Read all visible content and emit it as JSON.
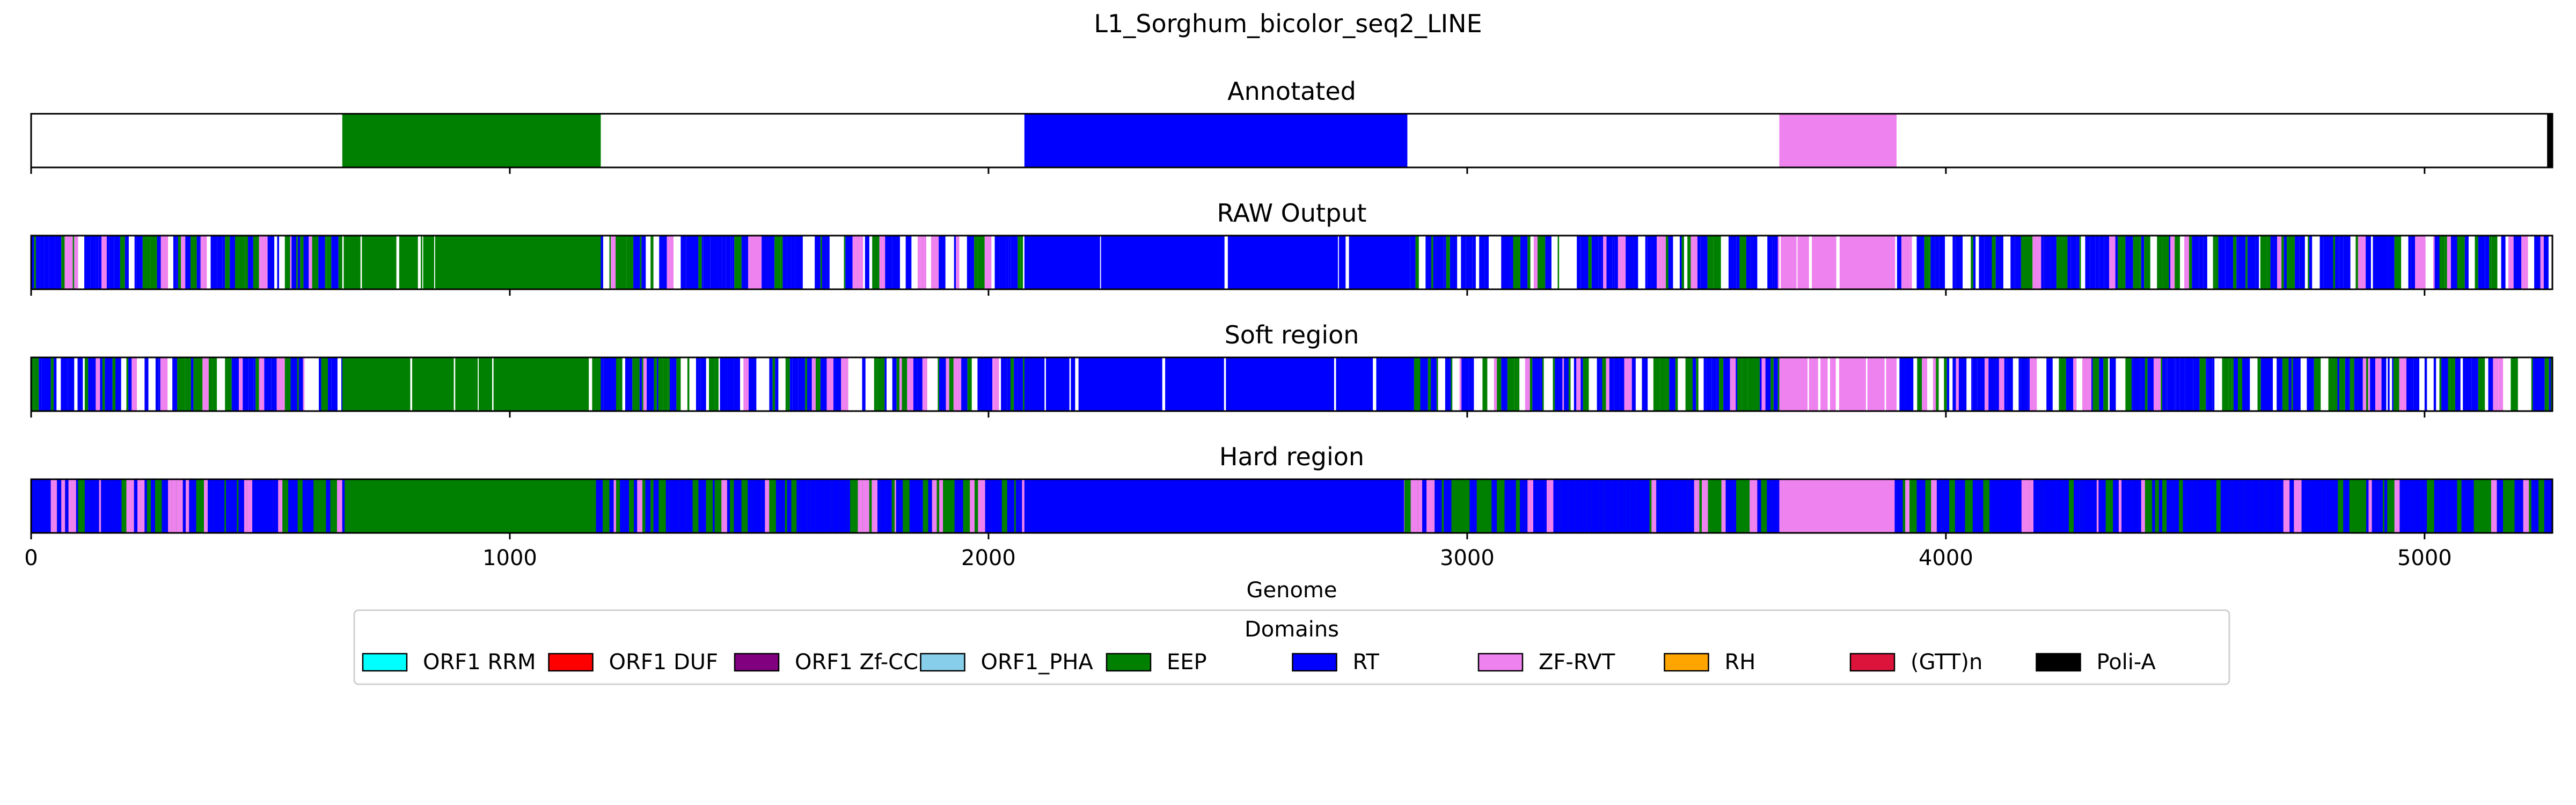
{
  "chart_data": {
    "type": "genome_track",
    "title": "L1_Sorghum_bicolor_seq2_LINE",
    "xlabel": "Genome",
    "xlim": [
      0,
      5267
    ],
    "xticks": [
      0,
      1000,
      2000,
      3000,
      4000,
      5000
    ],
    "colors": {
      "ORF1 RRM": "#00ffff",
      "ORF1 DUF": "#ff0000",
      "ORF1 Zf-CCHC": "#800080",
      "ORF1_PHA": "#87ceeb",
      "EEP": "#008000",
      "RT": "#0000ff",
      "ZF-RVT": "#ee82ee",
      "RH": "#ffa500",
      "(GTT)n": "#dc143c",
      "Poli-A": "#000000"
    },
    "tracks": [
      {
        "title": "Annotated",
        "segments": [
          {
            "domain": "EEP",
            "start": 650,
            "end": 1190
          },
          {
            "domain": "RT",
            "start": 2075,
            "end": 2875
          },
          {
            "domain": "ZF-RVT",
            "start": 3652,
            "end": 3897
          },
          {
            "domain": "Poli-A",
            "start": 5256,
            "end": 5267
          }
        ],
        "background": null,
        "noise": null
      },
      {
        "title": "RAW Output",
        "background": null,
        "segments": [
          {
            "domain": "EEP",
            "start": 650,
            "end": 1190,
            "density": 0.85
          },
          {
            "domain": "RT",
            "start": 2075,
            "end": 2875,
            "density": 0.88
          },
          {
            "domain": "ZF-RVT",
            "start": 3652,
            "end": 3897,
            "density": 0.7
          }
        ],
        "noise": {
          "domains": [
            "RT",
            "EEP",
            "ZF-RVT"
          ],
          "weights": [
            0.55,
            0.3,
            0.15
          ],
          "density": 0.8,
          "seed": 11
        }
      },
      {
        "title": "Soft region",
        "background": null,
        "segments": [
          {
            "domain": "EEP",
            "start": 650,
            "end": 1190,
            "density": 0.88
          },
          {
            "domain": "RT",
            "start": 2075,
            "end": 2875,
            "density": 0.9
          },
          {
            "domain": "ZF-RVT",
            "start": 3652,
            "end": 3897,
            "density": 0.72
          }
        ],
        "noise": {
          "domains": [
            "RT",
            "EEP",
            "ZF-RVT"
          ],
          "weights": [
            0.55,
            0.3,
            0.15
          ],
          "density": 0.8,
          "seed": 23
        }
      },
      {
        "title": "Hard region",
        "background": "EEP",
        "segments": [
          {
            "domain": "EEP",
            "start": 655,
            "end": 1175,
            "density": 1.0
          },
          {
            "domain": "RT",
            "start": 2075,
            "end": 2868,
            "density": 1.0
          },
          {
            "domain": "ZF-RVT",
            "start": 3652,
            "end": 3893,
            "density": 1.0
          }
        ],
        "noise": {
          "domains": [
            "RT",
            "EEP",
            "ZF-RVT"
          ],
          "weights": [
            0.6,
            0.25,
            0.15
          ],
          "density": 1.0,
          "seed": 37
        }
      }
    ],
    "legend": {
      "title": "Domains",
      "position": "lower center",
      "entries": [
        "ORF1 RRM",
        "ORF1 DUF",
        "ORF1 Zf-CCHC",
        "ORF1_PHA",
        "EEP",
        "RT",
        "ZF-RVT",
        "RH",
        "(GTT)n",
        "Poli-A"
      ]
    }
  }
}
